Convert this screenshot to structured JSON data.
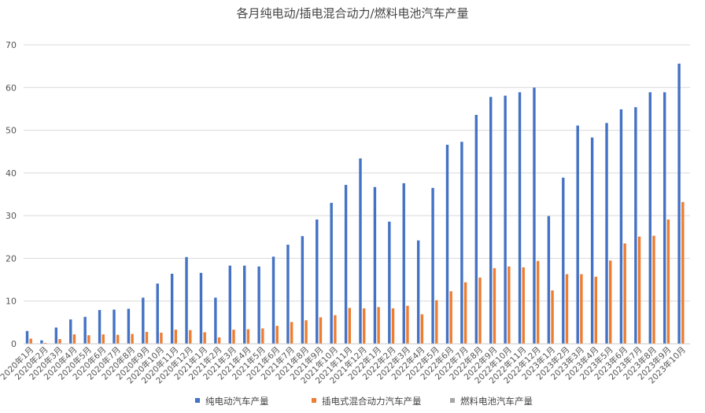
{
  "chart_data": {
    "type": "bar",
    "title": "各月纯电动/插电混合动力/燃料电池汽车产量",
    "xlabel": "",
    "ylabel": "",
    "ylim": [
      0,
      70
    ],
    "yticks": [
      0,
      10,
      20,
      30,
      40,
      50,
      60,
      70
    ],
    "grid": true,
    "legend_position": "bottom",
    "categories": [
      "2020年1月",
      "2020年2月",
      "2020年3月",
      "2020年4月",
      "2020年5月",
      "2020年6月",
      "2020年7月",
      "2020年8月",
      "2020年9月",
      "2020年10月",
      "2020年11月",
      "2020年12月",
      "2021年1月",
      "2021年2月",
      "2021年3月",
      "2021年4月",
      "2021年5月",
      "2021年6月",
      "2021年7月",
      "2021年8月",
      "2021年9月",
      "2021年10月",
      "2021年11月",
      "2021年12月",
      "2022年1月",
      "2022年2月",
      "2022年3月",
      "2022年4月",
      "2022年5月",
      "2022年6月",
      "2022年7月",
      "2022年8月",
      "2022年9月",
      "2022年10月",
      "2022年11月",
      "2022年12月",
      "2023年1月",
      "2023年2月",
      "2023年3月",
      "2023年4月",
      "2023年5月",
      "2023年6月",
      "2023年7月",
      "2023年8月",
      "2023年9月",
      "2023年10月"
    ],
    "series": [
      {
        "name": "纯电动汽车产量",
        "color": "#4472c4",
        "values": [
          3.0,
          0.8,
          3.8,
          5.7,
          6.3,
          7.9,
          8.0,
          8.2,
          10.8,
          14.1,
          16.4,
          20.3,
          16.6,
          10.8,
          18.3,
          18.3,
          18.1,
          20.4,
          23.2,
          25.2,
          29.1,
          33.0,
          37.2,
          43.4,
          36.7,
          28.6,
          37.6,
          24.2,
          36.5,
          46.6,
          47.3,
          53.6,
          57.8,
          58.1,
          58.9,
          60.0,
          29.9,
          38.9,
          51.1,
          48.3,
          51.7,
          54.9,
          55.4,
          58.9,
          58.9,
          65.6
        ]
      },
      {
        "name": "插电式混合动力汽车产量",
        "color": "#ed7d31",
        "values": [
          1.2,
          0.2,
          1.1,
          2.2,
          2.0,
          2.2,
          2.1,
          2.3,
          2.8,
          2.6,
          3.3,
          3.2,
          2.7,
          1.5,
          3.3,
          3.4,
          3.6,
          4.2,
          5.1,
          5.5,
          6.2,
          6.7,
          8.4,
          8.3,
          8.6,
          8.3,
          8.9,
          6.9,
          10.2,
          12.3,
          14.4,
          15.5,
          17.7,
          18.1,
          17.9,
          19.4,
          12.5,
          16.3,
          16.3,
          15.7,
          19.5,
          23.5,
          25.1,
          25.3,
          29.1,
          33.2
        ]
      },
      {
        "name": "燃料电池汽车产量",
        "color": "#a5a5a5",
        "values": [
          0.0,
          0.0,
          0.0,
          0.0,
          0.0,
          0.0,
          0.0,
          0.0,
          0.0,
          0.0,
          0.0,
          0.0,
          0.0,
          0.0,
          0.0,
          0.0,
          0.0,
          0.0,
          0.0,
          0.0,
          0.0,
          0.0,
          0.0,
          0.0,
          0.0,
          0.0,
          0.0,
          0.0,
          0.0,
          0.0,
          0.0,
          0.0,
          0.0,
          0.0,
          0.0,
          0.0,
          0.0,
          0.0,
          0.0,
          0.0,
          0.0,
          0.0,
          0.0,
          0.0,
          0.0,
          0.0
        ]
      }
    ]
  }
}
